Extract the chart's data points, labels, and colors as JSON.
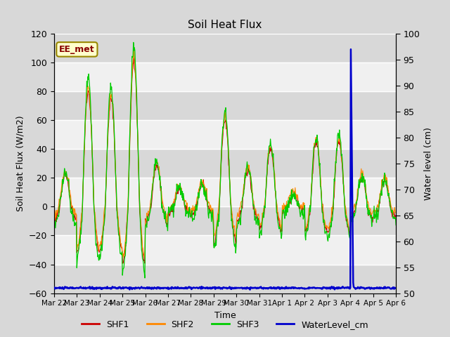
{
  "title": "Soil Heat Flux",
  "ylabel_left": "Soil Heat Flux (W/m2)",
  "ylabel_right": "Water level (cm)",
  "xlabel": "Time",
  "annotation_text": "EE_met",
  "ylim_left": [
    -60,
    120
  ],
  "ylim_right": [
    50,
    100
  ],
  "yticks_left": [
    -60,
    -40,
    -20,
    0,
    20,
    40,
    60,
    80,
    100,
    120
  ],
  "yticks_right": [
    50,
    55,
    60,
    65,
    70,
    75,
    80,
    85,
    90,
    95,
    100
  ],
  "colors": {
    "SHF1": "#cc0000",
    "SHF2": "#ff8800",
    "SHF3": "#00cc00",
    "WaterLevel": "#0000cc"
  },
  "date_labels": [
    "Mar 22",
    "Mar 23",
    "Mar 24",
    "Mar 25",
    "Mar 26",
    "Mar 27",
    "Mar 28",
    "Mar 29",
    "Mar 30",
    "Mar 31",
    "Apr 1",
    "Apr 2",
    "Apr 3",
    "Apr 4",
    "Apr 5",
    "Apr 6"
  ],
  "legend_labels": [
    "SHF1",
    "SHF2",
    "SHF3",
    "WaterLevel_cm"
  ],
  "bg_color": "#d8d8d8",
  "plot_bg_color": "#d8d8d8",
  "white_band_color": "#f0f0f0",
  "daily_amps": [
    22,
    80,
    75,
    100,
    28,
    12,
    15,
    60,
    25,
    40,
    8,
    45,
    45,
    20,
    18
  ],
  "night_amp_ratio": 0.4,
  "figsize": [
    6.4,
    4.8
  ],
  "dpi": 100
}
